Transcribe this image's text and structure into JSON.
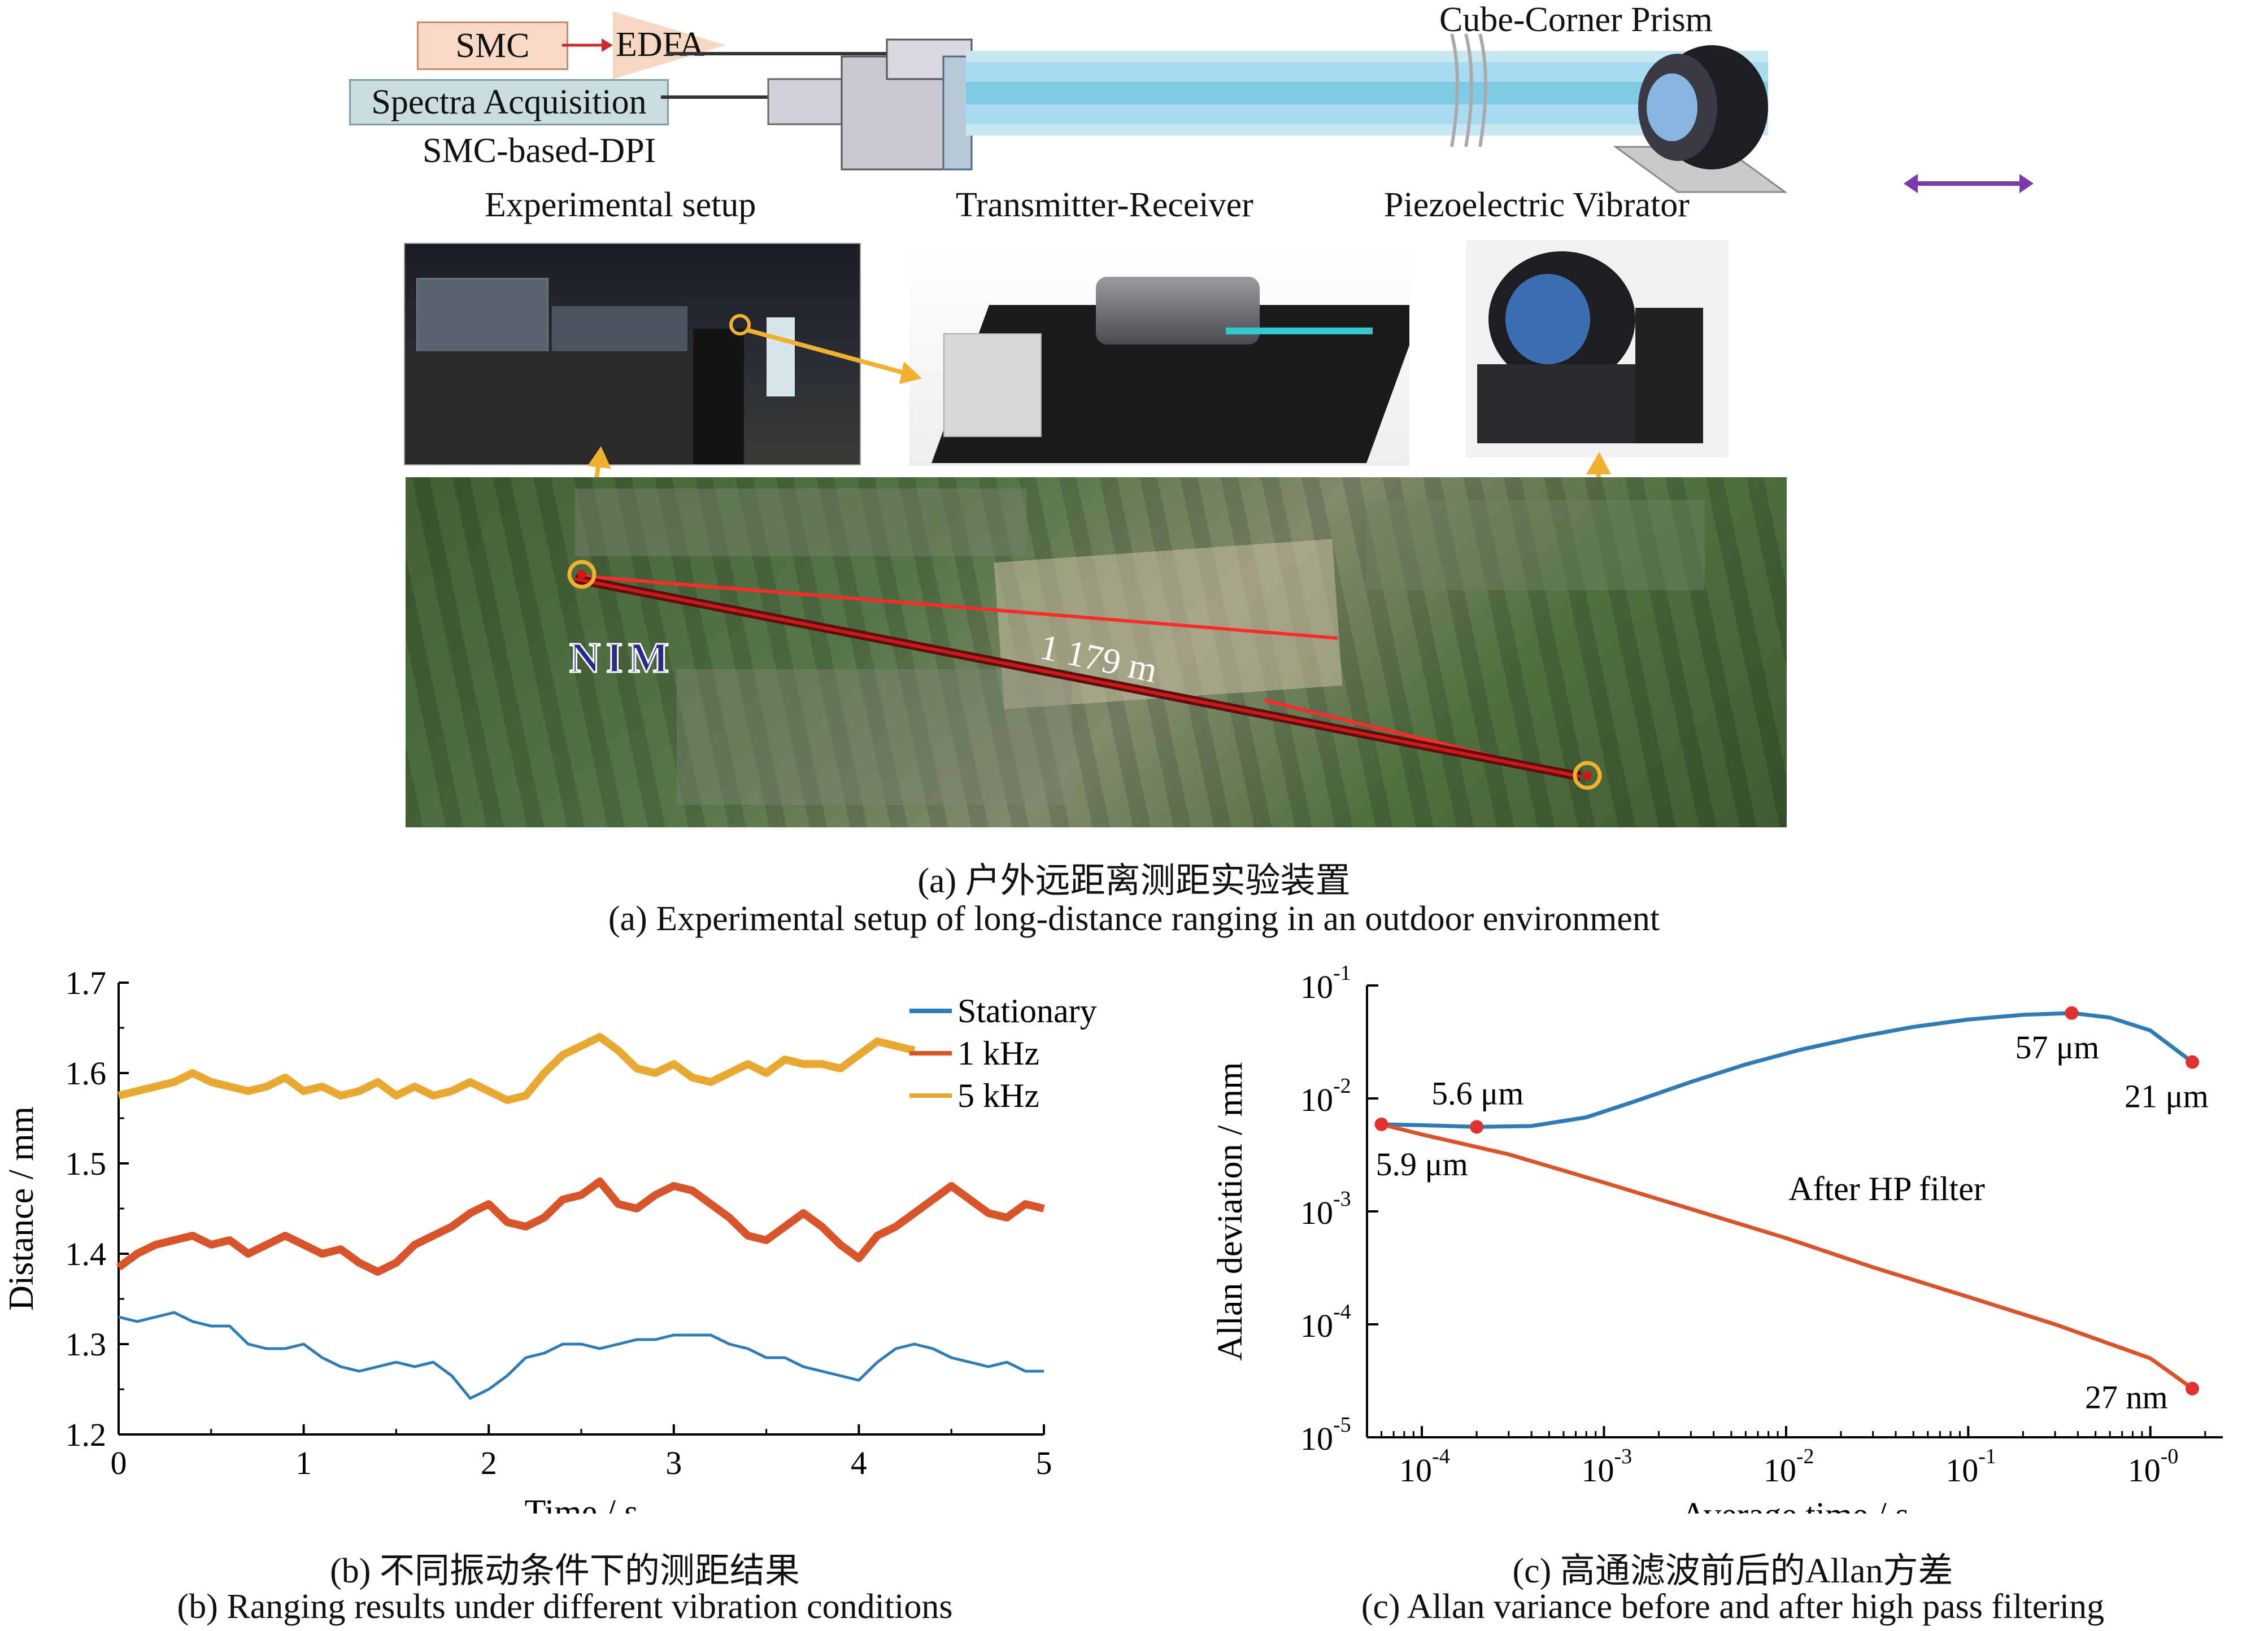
{
  "panel_a": {
    "schematic": {
      "smc": "SMC",
      "edfa": "EDFA",
      "spectra": "Spectra Acquisition",
      "dpi": "SMC-based-DPI",
      "prism": "Cube-Corner Prism"
    },
    "photo_labels": {
      "setup": "Experimental setup",
      "tr": "Transmitter-Receiver",
      "pv": "Piezoelectric Vibrator"
    },
    "map": {
      "distance": "1 179 m",
      "logo": "NIM"
    },
    "caption_cn": "(a) 户外远距离测距实验装置",
    "caption_en": "(a) Experimental setup of long-distance ranging in an outdoor environment"
  },
  "panel_b": {
    "caption_cn": "(b) 不同振动条件下的测距结果",
    "caption_en": "(b) Ranging results under different vibration conditions"
  },
  "panel_c": {
    "caption_cn": "(c) 高通滤波前后的Allan方差",
    "caption_en": "(c) Allan variance before and after high pass filtering"
  },
  "chart_data": [
    {
      "type": "line",
      "xlabel": "Time / s",
      "ylabel": "Distance / mm",
      "xlim": [
        0,
        5
      ],
      "ylim": [
        1.2,
        1.7
      ],
      "xticks": [
        "0",
        "1",
        "2",
        "3",
        "4",
        "5"
      ],
      "yticks": [
        "1.2",
        "1.3",
        "1.4",
        "1.5",
        "1.6",
        "1.7"
      ],
      "legend_position": "top-right",
      "series": [
        {
          "name": "Stationary",
          "color": "#2f7bb6",
          "x": [
            0,
            0.1,
            0.2,
            0.3,
            0.4,
            0.5,
            0.6,
            0.7,
            0.8,
            0.9,
            1.0,
            1.1,
            1.2,
            1.3,
            1.4,
            1.5,
            1.6,
            1.7,
            1.8,
            1.9,
            2.0,
            2.1,
            2.2,
            2.3,
            2.4,
            2.5,
            2.6,
            2.7,
            2.8,
            2.9,
            3.0,
            3.1,
            3.2,
            3.3,
            3.4,
            3.5,
            3.6,
            3.7,
            3.8,
            3.9,
            4.0,
            4.1,
            4.2,
            4.3,
            4.4,
            4.5,
            4.6,
            4.7,
            4.8,
            4.9,
            5.0
          ],
          "y": [
            1.33,
            1.325,
            1.33,
            1.335,
            1.325,
            1.32,
            1.32,
            1.3,
            1.295,
            1.295,
            1.3,
            1.285,
            1.275,
            1.27,
            1.275,
            1.28,
            1.275,
            1.28,
            1.265,
            1.24,
            1.25,
            1.265,
            1.285,
            1.29,
            1.3,
            1.3,
            1.295,
            1.3,
            1.305,
            1.305,
            1.31,
            1.31,
            1.31,
            1.3,
            1.295,
            1.285,
            1.285,
            1.275,
            1.27,
            1.265,
            1.26,
            1.28,
            1.295,
            1.3,
            1.295,
            1.285,
            1.28,
            1.275,
            1.28,
            1.27,
            1.27
          ]
        },
        {
          "name": "1 kHz",
          "color": "#d8542a",
          "x": [
            0,
            0.1,
            0.2,
            0.3,
            0.4,
            0.5,
            0.6,
            0.7,
            0.8,
            0.9,
            1.0,
            1.1,
            1.2,
            1.3,
            1.4,
            1.5,
            1.6,
            1.7,
            1.8,
            1.9,
            2.0,
            2.1,
            2.2,
            2.3,
            2.4,
            2.5,
            2.6,
            2.7,
            2.8,
            2.9,
            3.0,
            3.1,
            3.2,
            3.3,
            3.4,
            3.5,
            3.6,
            3.7,
            3.8,
            3.9,
            4.0,
            4.1,
            4.2,
            4.3,
            4.4,
            4.5,
            4.6,
            4.7,
            4.8,
            4.9,
            5.0
          ],
          "y": [
            1.385,
            1.4,
            1.41,
            1.415,
            1.42,
            1.41,
            1.415,
            1.4,
            1.41,
            1.42,
            1.41,
            1.4,
            1.405,
            1.39,
            1.38,
            1.39,
            1.41,
            1.42,
            1.43,
            1.445,
            1.455,
            1.435,
            1.43,
            1.44,
            1.46,
            1.465,
            1.48,
            1.455,
            1.45,
            1.465,
            1.475,
            1.47,
            1.455,
            1.44,
            1.42,
            1.415,
            1.43,
            1.445,
            1.43,
            1.41,
            1.395,
            1.42,
            1.43,
            1.445,
            1.46,
            1.475,
            1.46,
            1.445,
            1.44,
            1.455,
            1.45
          ]
        },
        {
          "name": "5 kHz",
          "color": "#e8a832",
          "x": [
            0,
            0.1,
            0.2,
            0.3,
            0.4,
            0.5,
            0.6,
            0.7,
            0.8,
            0.9,
            1.0,
            1.1,
            1.2,
            1.3,
            1.4,
            1.5,
            1.6,
            1.7,
            1.8,
            1.9,
            2.0,
            2.1,
            2.2,
            2.3,
            2.4,
            2.5,
            2.6,
            2.7,
            2.8,
            2.9,
            3.0,
            3.1,
            3.2,
            3.3,
            3.4,
            3.5,
            3.6,
            3.7,
            3.8,
            3.9,
            4.0,
            4.1,
            4.2,
            4.3
          ],
          "y": [
            1.575,
            1.58,
            1.585,
            1.59,
            1.6,
            1.59,
            1.585,
            1.58,
            1.585,
            1.595,
            1.58,
            1.585,
            1.575,
            1.58,
            1.59,
            1.575,
            1.585,
            1.575,
            1.58,
            1.59,
            1.58,
            1.57,
            1.575,
            1.6,
            1.62,
            1.63,
            1.64,
            1.625,
            1.605,
            1.6,
            1.61,
            1.595,
            1.59,
            1.6,
            1.61,
            1.6,
            1.615,
            1.61,
            1.61,
            1.605,
            1.62,
            1.635,
            1.63,
            1.625
          ]
        }
      ]
    },
    {
      "type": "line",
      "xlabel": "Average time / s",
      "ylabel": "Allan deviation / mm",
      "xscale": "log",
      "yscale": "log",
      "xlim": [
        5e-05,
        2.5
      ],
      "ylim": [
        1e-05,
        0.1
      ],
      "xtick_values": [
        0.0001,
        0.001,
        0.01,
        0.1,
        1
      ],
      "ytick_values": [
        1e-05,
        0.0001,
        0.001,
        0.01,
        0.1
      ],
      "xtick_exponents": [
        "-4",
        "-3",
        "-2",
        "-1",
        "-0"
      ],
      "ytick_exponents": [
        "-5",
        "-4",
        "-3",
        "-2",
        "-1"
      ],
      "tick_base": "10",
      "annotation": "After HP filter",
      "series": [
        {
          "color": "#2f7bb6",
          "x": [
            6e-05,
            0.0001,
            0.0002,
            0.0004,
            0.0008,
            0.0015,
            0.003,
            0.006,
            0.012,
            0.025,
            0.05,
            0.1,
            0.2,
            0.37,
            0.6,
            1.0,
            1.7
          ],
          "y": [
            0.0059,
            0.0058,
            0.0056,
            0.0057,
            0.0068,
            0.0095,
            0.014,
            0.02,
            0.027,
            0.035,
            0.043,
            0.05,
            0.055,
            0.057,
            0.052,
            0.04,
            0.021
          ]
        },
        {
          "color": "#d8542a",
          "x": [
            6e-05,
            0.0001,
            0.0003,
            0.001,
            0.003,
            0.01,
            0.03,
            0.1,
            0.3,
            1.0,
            1.3,
            1.7
          ],
          "y": [
            0.0059,
            0.0048,
            0.0032,
            0.0018,
            0.00105,
            0.00058,
            0.00032,
            0.000175,
            0.0001,
            5e-05,
            3.7e-05,
            2.7e-05
          ]
        }
      ],
      "markers": [
        {
          "x": 6e-05,
          "y": 0.0059,
          "label": "5.9 μm"
        },
        {
          "x": 0.0002,
          "y": 0.0056,
          "label": "5.6 μm"
        },
        {
          "x": 0.37,
          "y": 0.057,
          "label": "57 μm"
        },
        {
          "x": 1.7,
          "y": 0.021,
          "label": "21 μm"
        },
        {
          "x": 1.7,
          "y": 2.7e-05,
          "label": "27 nm"
        }
      ]
    }
  ]
}
